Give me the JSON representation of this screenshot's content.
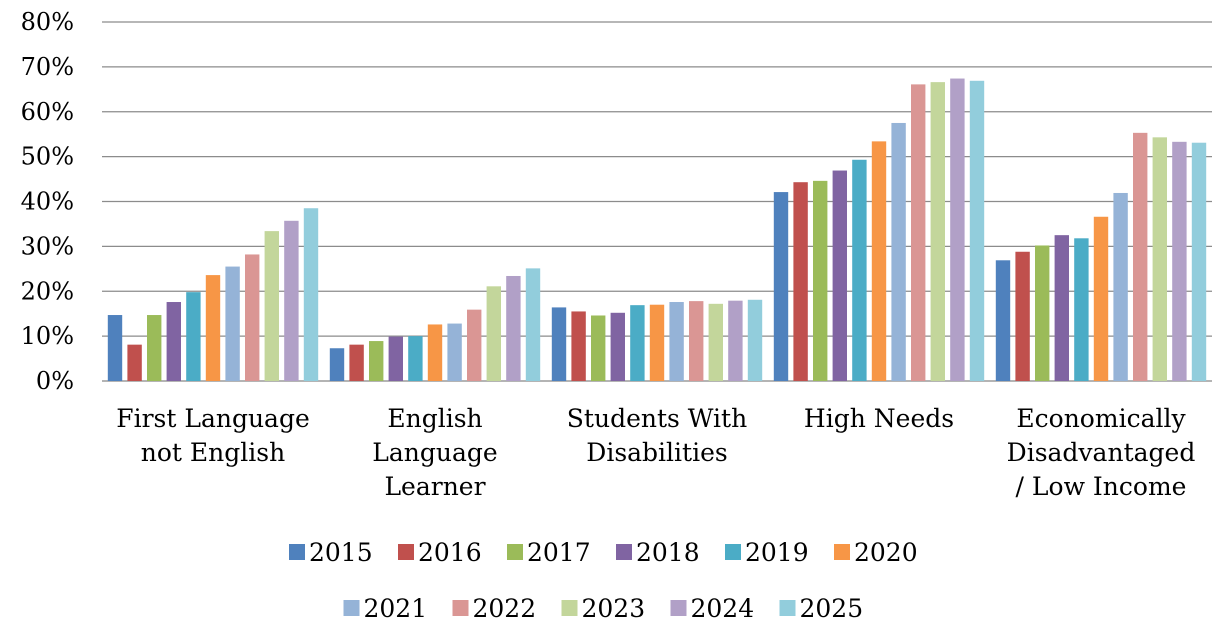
{
  "chart_data": {
    "type": "bar",
    "title": "",
    "xlabel": "",
    "ylabel": "",
    "ylim": [
      0,
      80
    ],
    "y_ticks": [
      "0%",
      "10%",
      "20%",
      "30%",
      "40%",
      "50%",
      "60%",
      "70%",
      "80%"
    ],
    "grid": "horizontal",
    "legend_position": "bottom",
    "categories": [
      [
        "First Language",
        "not English"
      ],
      [
        "English",
        "Language",
        "Learner"
      ],
      [
        "Students With",
        "Disabilities"
      ],
      [
        "High Needs"
      ],
      [
        "Economically",
        "Disadvantaged",
        "/ Low Income"
      ]
    ],
    "series": [
      {
        "name": "2015",
        "color": "#4F81BD",
        "values": [
          14.7,
          7.3,
          16.4,
          42.1,
          26.9
        ]
      },
      {
        "name": "2016",
        "color": "#C0504D",
        "values": [
          8.1,
          8.1,
          15.5,
          44.3,
          28.8
        ]
      },
      {
        "name": "2017",
        "color": "#9BBB59",
        "values": [
          14.7,
          8.9,
          14.6,
          44.6,
          30.2
        ]
      },
      {
        "name": "2018",
        "color": "#8064A2",
        "values": [
          17.6,
          9.9,
          15.2,
          46.9,
          32.5
        ]
      },
      {
        "name": "2019",
        "color": "#4BACC6",
        "values": [
          19.8,
          10.0,
          16.9,
          49.3,
          31.8
        ]
      },
      {
        "name": "2020",
        "color": "#F79646",
        "values": [
          23.6,
          12.6,
          17.0,
          53.4,
          36.6
        ]
      },
      {
        "name": "2021",
        "color": "#95B3D7",
        "values": [
          25.5,
          12.8,
          17.6,
          57.5,
          41.9
        ]
      },
      {
        "name": "2022",
        "color": "#DA9694",
        "values": [
          28.2,
          15.9,
          17.8,
          66.1,
          55.3
        ]
      },
      {
        "name": "2023",
        "color": "#C3D69B",
        "values": [
          33.4,
          21.1,
          17.2,
          66.6,
          54.3
        ]
      },
      {
        "name": "2024",
        "color": "#B1A0C7",
        "values": [
          35.7,
          23.4,
          17.9,
          67.4,
          53.3
        ]
      },
      {
        "name": "2025",
        "color": "#92CDDC",
        "values": [
          38.5,
          25.1,
          18.1,
          66.9,
          53.1
        ]
      }
    ]
  }
}
